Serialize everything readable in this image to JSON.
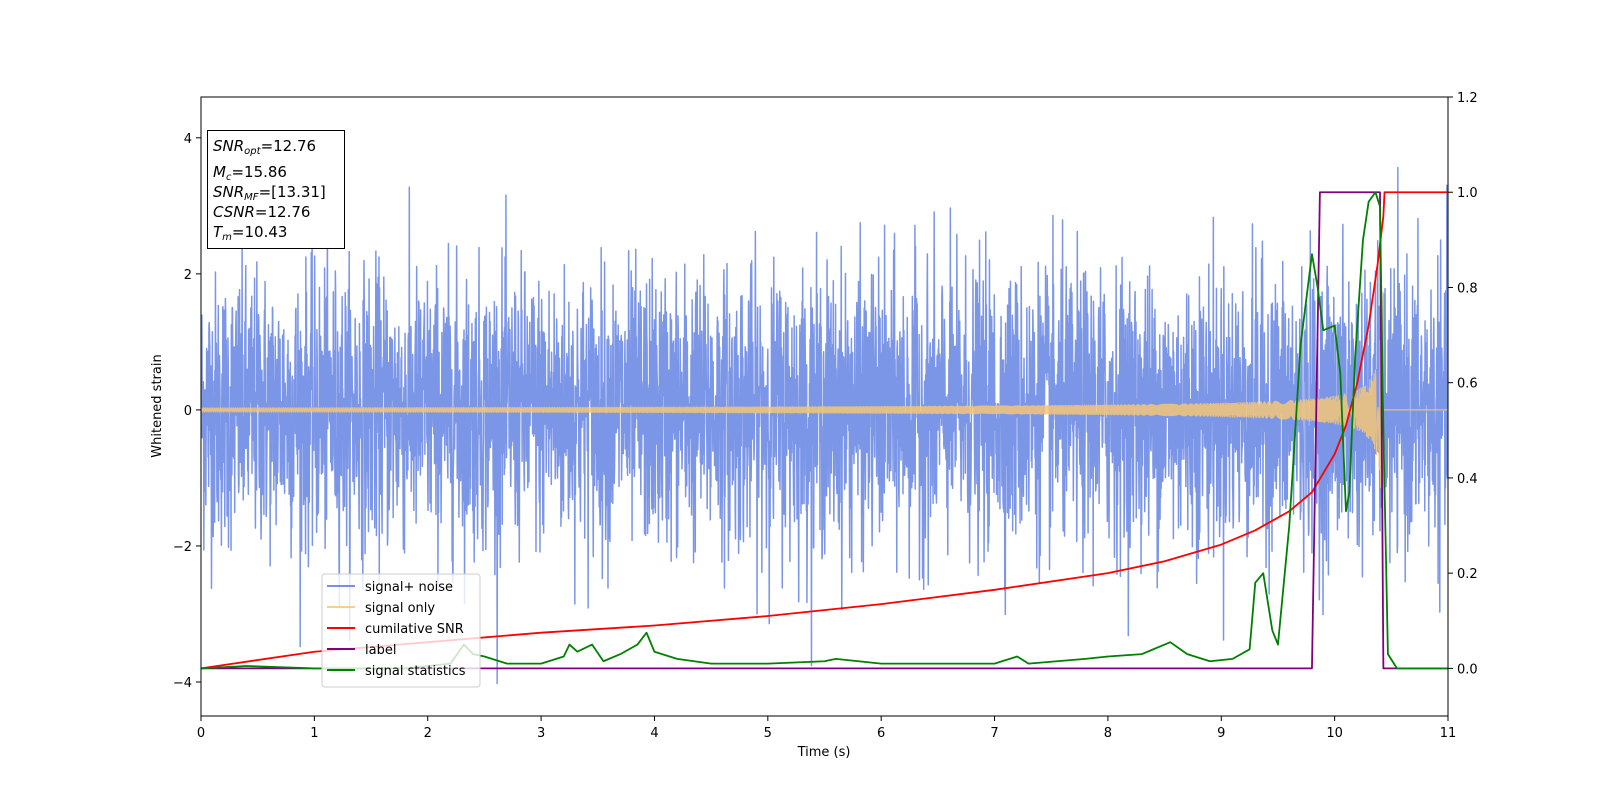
{
  "chart_data": {
    "type": "line",
    "xlabel": "Time (s)",
    "ylabel": "Whitened strain",
    "xlim": [
      0,
      11
    ],
    "ylim": [
      -4.5,
      4.6
    ],
    "y2lim": [
      -0.1,
      1.2
    ],
    "x_ticks": [
      0,
      1,
      2,
      3,
      4,
      5,
      6,
      7,
      8,
      9,
      10,
      11
    ],
    "y_ticks": [
      -4,
      -2,
      0,
      2,
      4
    ],
    "y2_ticks": [
      0.0,
      0.2,
      0.4,
      0.6,
      0.8,
      1.0,
      1.2
    ],
    "grid": false,
    "legend_location": "lower-left",
    "info": {
      "snr_opt_sym": "SNR",
      "snr_opt_sub": "opt",
      "snr_opt_val": "=12.76",
      "mc_sym": "M",
      "mc_sub": "c",
      "mc_val": "=15.86",
      "snr_mf_sym": "SNR",
      "snr_mf_sub": "MF",
      "snr_mf_val": "=[13.31]",
      "csnr_sym": "CSNR",
      "csnr_val": "=12.76",
      "tm_sym": "T",
      "tm_sub": "m",
      "tm_val": "=10.43"
    },
    "series": [
      {
        "name": "signal+ noise",
        "color": "#7590e6",
        "axis": "left",
        "kind": "noise",
        "std": 1.0,
        "t_merger": 10.43
      },
      {
        "name": "signal only",
        "color": "#f5c777",
        "axis": "left",
        "kind": "chirp",
        "amp_start": 0.03,
        "amp_peak": 2.5,
        "t_merger": 10.43
      },
      {
        "name": "cumilative SNR",
        "color": "#ff0000",
        "axis": "right",
        "x": [
          0,
          1,
          2,
          3,
          4,
          5,
          6,
          7,
          8,
          8.5,
          9,
          9.3,
          9.6,
          9.8,
          10.0,
          10.1,
          10.2,
          10.3,
          10.38,
          10.43,
          10.44,
          11
        ],
        "y": [
          0.0,
          0.035,
          0.055,
          0.075,
          0.09,
          0.11,
          0.135,
          0.165,
          0.2,
          0.225,
          0.26,
          0.29,
          0.33,
          0.37,
          0.45,
          0.51,
          0.6,
          0.72,
          0.85,
          0.95,
          1.0,
          1.0
        ]
      },
      {
        "name": "label",
        "color": "#800080",
        "axis": "right",
        "x": [
          0,
          9.8,
          9.87,
          10.4,
          10.43,
          11
        ],
        "y": [
          0.0,
          0.0,
          1.0,
          1.0,
          0.0,
          0.0
        ]
      },
      {
        "name": "signal statistics",
        "color": "#008000",
        "axis": "right",
        "x": [
          0,
          0.4,
          1.0,
          1.8,
          2.2,
          2.32,
          2.4,
          2.5,
          2.7,
          3.0,
          3.2,
          3.25,
          3.32,
          3.45,
          3.55,
          3.7,
          3.85,
          3.93,
          4.0,
          4.2,
          4.5,
          5.0,
          5.5,
          5.6,
          5.8,
          6.0,
          6.5,
          7.0,
          7.2,
          7.3,
          7.8,
          8.0,
          8.3,
          8.55,
          8.7,
          8.9,
          9.1,
          9.25,
          9.3,
          9.37,
          9.45,
          9.5,
          9.6,
          9.7,
          9.8,
          9.85,
          9.9,
          10.0,
          10.05,
          10.1,
          10.13,
          10.18,
          10.25,
          10.3,
          10.36,
          10.4,
          10.43,
          10.47,
          10.55,
          11
        ],
        "y": [
          0.0,
          0.005,
          0.0,
          0.0,
          0.01,
          0.05,
          0.03,
          0.025,
          0.01,
          0.01,
          0.025,
          0.05,
          0.035,
          0.05,
          0.015,
          0.03,
          0.05,
          0.075,
          0.035,
          0.02,
          0.01,
          0.01,
          0.015,
          0.02,
          0.015,
          0.01,
          0.01,
          0.01,
          0.025,
          0.01,
          0.02,
          0.025,
          0.03,
          0.055,
          0.03,
          0.015,
          0.02,
          0.04,
          0.18,
          0.2,
          0.08,
          0.05,
          0.3,
          0.68,
          0.87,
          0.8,
          0.71,
          0.72,
          0.62,
          0.33,
          0.37,
          0.65,
          0.9,
          0.98,
          1.0,
          0.97,
          0.5,
          0.03,
          0.0,
          0.0
        ]
      }
    ]
  }
}
